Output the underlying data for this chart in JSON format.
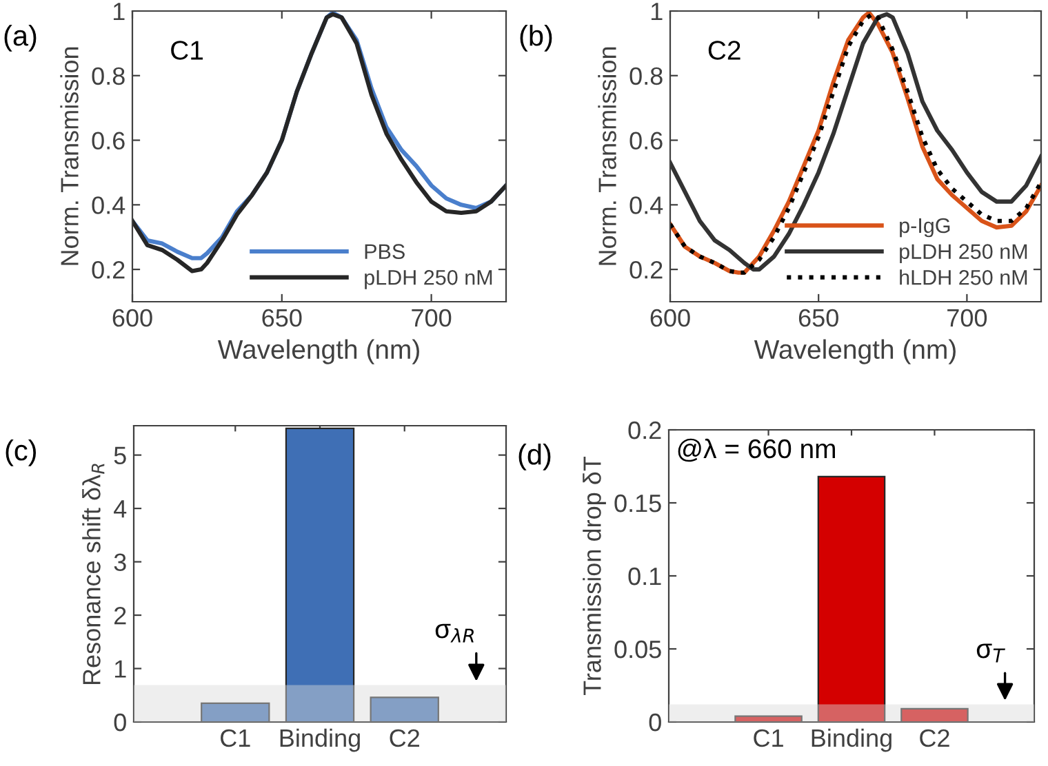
{
  "chart_data": [
    {
      "type": "line",
      "xlabel": "Wavelength (nm)",
      "ylabel": "Norm. Transmission",
      "annotations": [
        "(a)",
        "C1"
      ],
      "legend": "bottom right",
      "xlim": [
        600,
        725
      ],
      "ylim": [
        0.1,
        1.0
      ],
      "xticks": [
        600,
        650,
        700
      ],
      "yticks": [
        0.2,
        0.4,
        0.6,
        0.8,
        1
      ],
      "x": [
        600,
        605,
        610,
        615,
        620,
        623,
        625,
        630,
        635,
        640,
        645,
        650,
        655,
        660,
        665,
        667,
        670,
        675,
        680,
        685,
        690,
        695,
        700,
        705,
        710,
        715,
        720,
        725
      ],
      "series": [
        {
          "name": "PBS",
          "color": "#4a7fcc",
          "values": [
            0.35,
            0.29,
            0.28,
            0.255,
            0.235,
            0.235,
            0.25,
            0.3,
            0.38,
            0.43,
            0.5,
            0.6,
            0.75,
            0.87,
            0.98,
            0.995,
            0.98,
            0.91,
            0.76,
            0.64,
            0.57,
            0.52,
            0.46,
            0.42,
            0.4,
            0.39,
            0.41,
            0.46
          ]
        },
        {
          "name": "pLDH 250 nM",
          "color": "#262626",
          "values": [
            0.35,
            0.275,
            0.26,
            0.23,
            0.195,
            0.2,
            0.22,
            0.29,
            0.37,
            0.43,
            0.5,
            0.6,
            0.75,
            0.87,
            0.98,
            0.99,
            0.98,
            0.9,
            0.74,
            0.62,
            0.54,
            0.47,
            0.41,
            0.38,
            0.375,
            0.38,
            0.41,
            0.46
          ]
        }
      ]
    },
    {
      "type": "line",
      "xlabel": "Wavelength (nm)",
      "ylabel": "Norm. Transmission",
      "annotations": [
        "(b)",
        "C2"
      ],
      "legend": "bottom right",
      "xlim": [
        600,
        725
      ],
      "ylim": [
        0.1,
        1.0
      ],
      "xticks": [
        600,
        650,
        700
      ],
      "yticks": [
        0.2,
        0.4,
        0.6,
        0.8,
        1
      ],
      "series": [
        {
          "name": "p-IgG",
          "color": "#d95319",
          "x": [
            600,
            605,
            610,
            615,
            620,
            623,
            625,
            630,
            635,
            640,
            645,
            650,
            655,
            660,
            665,
            667,
            670,
            675,
            680,
            685,
            690,
            695,
            700,
            705,
            710,
            715,
            720,
            725
          ],
          "values": [
            0.34,
            0.27,
            0.24,
            0.22,
            0.195,
            0.19,
            0.19,
            0.24,
            0.32,
            0.41,
            0.52,
            0.63,
            0.78,
            0.91,
            0.98,
            0.995,
            0.96,
            0.87,
            0.73,
            0.58,
            0.48,
            0.43,
            0.39,
            0.35,
            0.33,
            0.335,
            0.38,
            0.46
          ]
        },
        {
          "name": "pLDH 250 nM",
          "color": "#333333",
          "x": [
            600,
            605,
            610,
            615,
            620,
            625,
            628,
            630,
            635,
            640,
            645,
            650,
            655,
            660,
            665,
            670,
            673,
            675,
            680,
            685,
            690,
            695,
            700,
            705,
            710,
            715,
            720,
            725
          ],
          "values": [
            0.53,
            0.44,
            0.35,
            0.29,
            0.26,
            0.22,
            0.2,
            0.2,
            0.24,
            0.31,
            0.4,
            0.5,
            0.62,
            0.76,
            0.9,
            0.98,
            0.99,
            0.98,
            0.87,
            0.72,
            0.63,
            0.57,
            0.5,
            0.44,
            0.41,
            0.41,
            0.46,
            0.55
          ]
        },
        {
          "name": "hLDH 250 nM",
          "color": "#000000",
          "line_style": "dotted",
          "x": [
            600,
            605,
            610,
            615,
            620,
            623,
            625,
            630,
            635,
            640,
            645,
            650,
            655,
            660,
            665,
            668,
            670,
            675,
            680,
            685,
            690,
            695,
            700,
            705,
            710,
            715,
            720,
            725
          ],
          "values": [
            0.34,
            0.27,
            0.24,
            0.22,
            0.195,
            0.19,
            0.19,
            0.23,
            0.3,
            0.39,
            0.5,
            0.61,
            0.75,
            0.89,
            0.97,
            0.99,
            0.98,
            0.88,
            0.75,
            0.61,
            0.51,
            0.45,
            0.41,
            0.37,
            0.35,
            0.35,
            0.39,
            0.47
          ]
        }
      ]
    },
    {
      "type": "bar",
      "ylabel": "Resonance shift δλ$_{R}$",
      "annotations": [
        "(c)"
      ],
      "categories": [
        "C1",
        "Binding",
        "C2"
      ],
      "values": [
        0.35,
        5.5,
        0.46
      ],
      "color": "#3f6fb5",
      "ylim": [
        0,
        5.55
      ],
      "yticks": [
        0,
        1,
        2,
        3,
        4,
        5
      ],
      "bands": [
        {
          "axis": "y",
          "from": 0,
          "to": 0.69,
          "label": "σ$_{λR}$",
          "color": "#d9d9d9"
        }
      ]
    },
    {
      "type": "bar",
      "ylabel": "Transmission drop δT",
      "annotations": [
        "(d)",
        "@λ = 660 nm"
      ],
      "categories": [
        "C1",
        "Binding",
        "C2"
      ],
      "values": [
        0.004,
        0.168,
        0.009
      ],
      "color": "#d40000",
      "ylim": [
        0,
        0.2
      ],
      "yticks": [
        0,
        0.05,
        0.1,
        0.15,
        0.2
      ],
      "bands": [
        {
          "axis": "y",
          "from": 0,
          "to": 0.012,
          "label": "σ$_{T}$",
          "color": "#d9d9d9"
        }
      ]
    }
  ]
}
